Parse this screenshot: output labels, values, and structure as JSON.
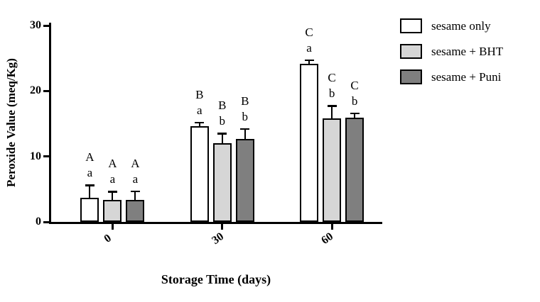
{
  "chart_data": {
    "type": "bar",
    "title": "",
    "xlabel": "Storage Time (days)",
    "ylabel": "Peroxide Value (meq/Kg)",
    "ylim": [
      0,
      30
    ],
    "yticks": [
      0,
      10,
      20,
      30
    ],
    "categories": [
      "0",
      "30",
      "60"
    ],
    "series": [
      {
        "name": "sesame only",
        "color": "#ffffff",
        "values": [
          3.7,
          14.6,
          24.2
        ],
        "errors": [
          1.8,
          0.5,
          0.4
        ]
      },
      {
        "name": "sesame + BHT",
        "color": "#d6d6d6",
        "values": [
          3.4,
          12.0,
          15.8
        ],
        "errors": [
          1.1,
          1.4,
          1.8
        ]
      },
      {
        "name": "sesame + Puni",
        "color": "#7f7f7f",
        "values": [
          3.4,
          12.7,
          15.9
        ],
        "errors": [
          1.2,
          1.4,
          0.6
        ]
      }
    ],
    "annotations": [
      [
        {
          "top": "A",
          "bottom": "a"
        },
        {
          "top": "A",
          "bottom": "a"
        },
        {
          "top": "A",
          "bottom": "a"
        }
      ],
      [
        {
          "top": "B",
          "bottom": "a"
        },
        {
          "top": "B",
          "bottom": "b"
        },
        {
          "top": "B",
          "bottom": "b"
        }
      ],
      [
        {
          "top": "C",
          "bottom": "a"
        },
        {
          "top": "C",
          "bottom": "b"
        },
        {
          "top": "C",
          "bottom": "b"
        }
      ]
    ],
    "legend_position": "top-right",
    "grid": false
  }
}
